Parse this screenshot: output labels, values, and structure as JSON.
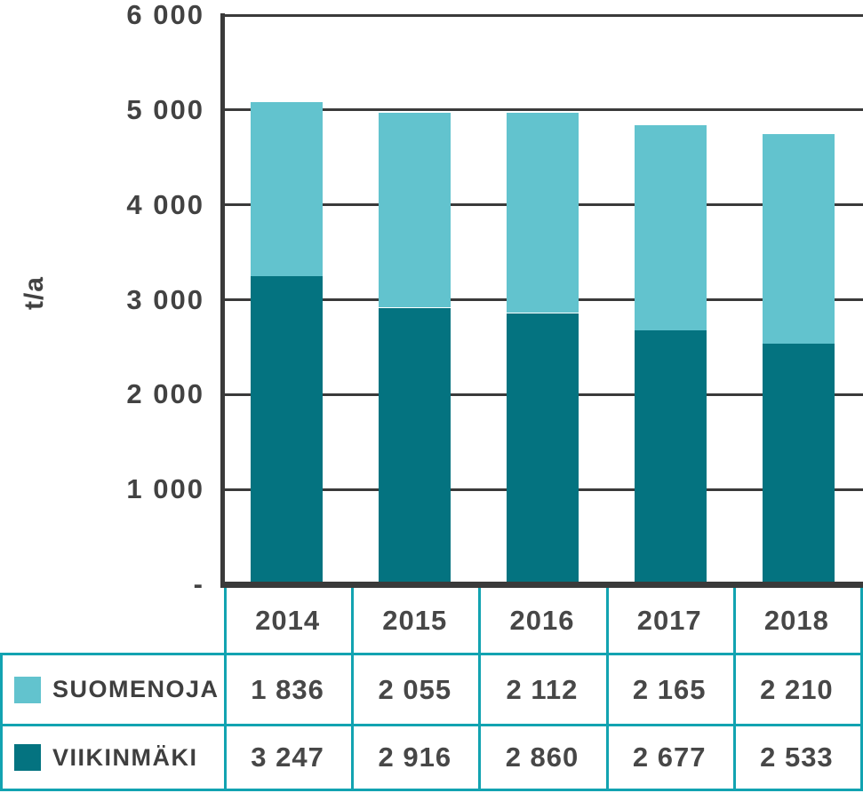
{
  "chart_data": {
    "type": "bar",
    "stacked": true,
    "title": "",
    "xlabel": "",
    "ylabel": "t/a",
    "ylim": [
      0,
      6000
    ],
    "ytick_interval": 1000,
    "grid": true,
    "legend_position": "table-rows-left",
    "ytick_labels": [
      {
        "value": 0,
        "label": "-"
      },
      {
        "value": 1000,
        "label": "1 000"
      },
      {
        "value": 2000,
        "label": "2 000"
      },
      {
        "value": 3000,
        "label": "3 000"
      },
      {
        "value": 4000,
        "label": "4 000"
      },
      {
        "value": 5000,
        "label": "5 000"
      },
      {
        "value": 6000,
        "label": "6 000"
      }
    ],
    "categories": [
      "2014",
      "2015",
      "2016",
      "2017",
      "2018"
    ],
    "series": [
      {
        "name": "SUOMENOJA",
        "stack_position": "top",
        "color": "#62c3ce",
        "values": [
          1836,
          2055,
          2112,
          2165,
          2210
        ],
        "display_values": [
          "1 836",
          "2 055",
          "2 112",
          "2 165",
          "2 210"
        ]
      },
      {
        "name": "VIIKINMÄKI",
        "stack_position": "bottom",
        "color": "#047380",
        "values": [
          3247,
          2916,
          2860,
          2677,
          2533
        ],
        "display_values": [
          "3 247",
          "2 916",
          "2 860",
          "2 677",
          "2 533"
        ]
      }
    ]
  },
  "colors": {
    "suomenoja": "#62c3ce",
    "viikinmaki": "#047380",
    "table_border": "#12a3b1",
    "axis": "#3a3a3a",
    "text": "#424242"
  }
}
